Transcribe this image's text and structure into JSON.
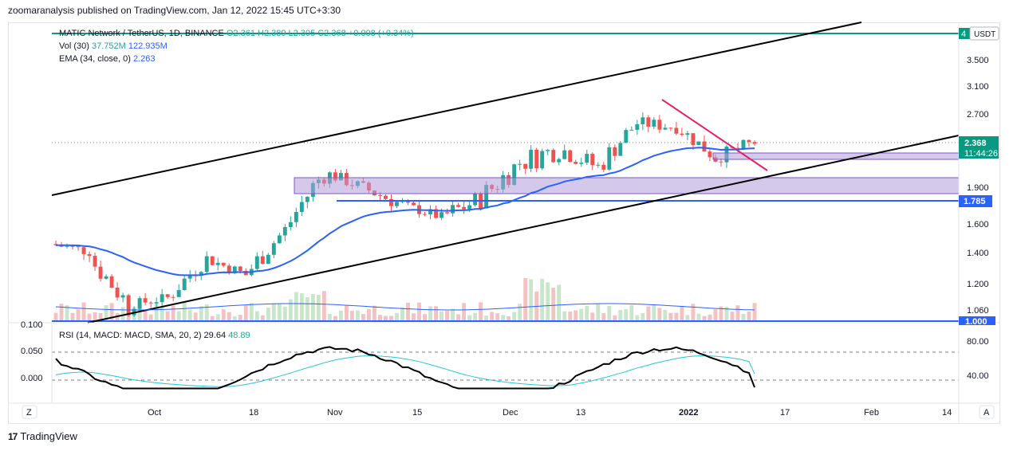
{
  "header": {
    "text": "zoomaranalysis published on TradingView.com, Jan 12, 2022 15:45 UTC+3:30"
  },
  "footer": {
    "logo": "17",
    "brand": "TradingView"
  },
  "legend": {
    "symbol": "MATIC Network / TetherUS, 1D, BINANCE",
    "ohlc": "O2.361  H2.389  L2.305  C2.368  +0.008 (+0.34%)",
    "vol_label": "Vol (30)",
    "vol_value1": "37.752M",
    "vol_value2": "122.935M",
    "ema_label": "EMA (34, close, 0)",
    "ema_value": "2.263",
    "rsi_label": "RSI (14, MACD: MACD, SMA, 20, 2)",
    "rsi_value1": "29.64",
    "rsi_value2": "48.89"
  },
  "price_axis": {
    "currency": "USDT",
    "ticks": [
      "3.500",
      "3.100",
      "2.700",
      "1.900",
      "1.600",
      "1.400",
      "1.200",
      "1.060"
    ],
    "top_label": "4",
    "current_price": "2.368",
    "countdown": "11:44:26",
    "level_label": "1.785",
    "bottom_label": "1.000"
  },
  "rsi_axis": {
    "ticks": [
      "80.00",
      "40.00"
    ]
  },
  "left_axis": {
    "ticks": [
      "0.100",
      "0.050",
      "0.000"
    ]
  },
  "time_axis": {
    "ticks": [
      "Oct",
      "18",
      "Nov",
      "15",
      "Dec",
      "13",
      "2022",
      "17",
      "Feb",
      "14"
    ]
  },
  "buttons": {
    "left": "Z",
    "right": "A"
  },
  "colors": {
    "up": "#26a69a",
    "down": "#ef5350",
    "ema": "#2962ff",
    "zone": "#b39ddb",
    "trend": "#e91e63",
    "rsi": "#000000",
    "rsi_ma": "#26c6da"
  },
  "chart_data": {
    "type": "candlestick",
    "title": "MATIC Network / TetherUS, 1D, BINANCE",
    "ylim": [
      1.0,
      4.0
    ],
    "log_scale": true,
    "candles_approx": [
      {
        "date": "Sep 13",
        "o": 1.45,
        "h": 1.55,
        "l": 1.32,
        "c": 1.4
      },
      {
        "date": "Sep 20",
        "o": 1.35,
        "h": 1.42,
        "l": 1.02,
        "c": 1.08
      },
      {
        "date": "Sep 27",
        "o": 1.08,
        "h": 1.18,
        "l": 1.02,
        "c": 1.12
      },
      {
        "date": "Oct 4",
        "o": 1.12,
        "h": 1.4,
        "l": 1.1,
        "c": 1.35
      },
      {
        "date": "Oct 11",
        "o": 1.35,
        "h": 1.42,
        "l": 1.2,
        "c": 1.25
      },
      {
        "date": "Oct 18",
        "o": 1.25,
        "h": 1.65,
        "l": 1.24,
        "c": 1.55
      },
      {
        "date": "Oct 25",
        "o": 1.55,
        "h": 2.25,
        "l": 1.55,
        "c": 2.05
      },
      {
        "date": "Nov 1",
        "o": 2.05,
        "h": 2.2,
        "l": 1.85,
        "c": 1.9
      },
      {
        "date": "Nov 8",
        "o": 1.9,
        "h": 2.0,
        "l": 1.6,
        "c": 1.75
      },
      {
        "date": "Nov 15",
        "o": 1.75,
        "h": 1.8,
        "l": 1.55,
        "c": 1.65
      },
      {
        "date": "Nov 22",
        "o": 1.65,
        "h": 2.05,
        "l": 1.55,
        "c": 1.8
      },
      {
        "date": "Nov 29",
        "o": 1.8,
        "h": 2.45,
        "l": 1.75,
        "c": 2.15
      },
      {
        "date": "Dec 6",
        "o": 2.15,
        "h": 2.55,
        "l": 1.8,
        "c": 2.3
      },
      {
        "date": "Dec 13",
        "o": 2.3,
        "h": 2.4,
        "l": 1.8,
        "c": 2.1
      },
      {
        "date": "Dec 20",
        "o": 2.1,
        "h": 2.75,
        "l": 2.05,
        "c": 2.6
      },
      {
        "date": "Dec 27",
        "o": 2.6,
        "h": 2.92,
        "l": 2.45,
        "c": 2.55
      },
      {
        "date": "Jan 3",
        "o": 2.55,
        "h": 2.6,
        "l": 2.1,
        "c": 2.2
      },
      {
        "date": "Jan 10",
        "o": 2.2,
        "h": 2.4,
        "l": 1.95,
        "c": 2.368
      }
    ],
    "levels": {
      "resistance_top": 4.0,
      "support": 1.785,
      "current": 2.368
    },
    "rsi": {
      "value": 29.64,
      "ma": 48.89,
      "levels": [
        80,
        40
      ]
    }
  }
}
